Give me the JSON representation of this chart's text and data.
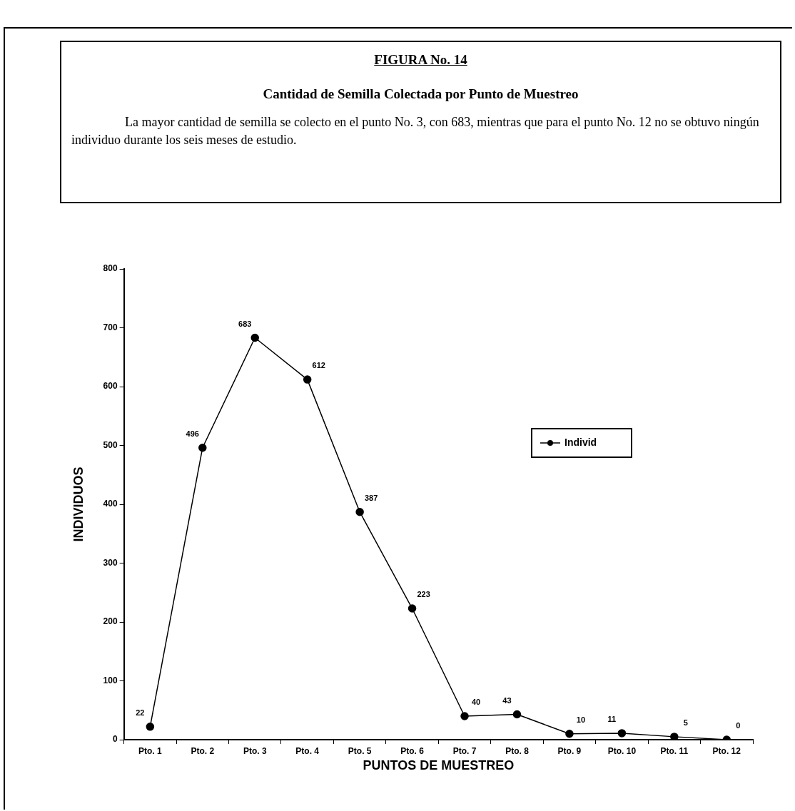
{
  "chart_data": {
    "type": "line",
    "title": "FIGURA No. 14",
    "subtitle": "Cantidad de Semilla Colectada por Punto de Muestreo",
    "annotations": [
      "La  mayor  cantidad de semilla se colecto en el punto No. 3, con 683, mientras que para el punto No. 12 no se obtuvo ningún individuo durante los seis meses de estudio."
    ],
    "xlabel": "PUNTOS DE MUESTREO",
    "ylabel": "INDIVIDUOS",
    "categories": [
      "Pto. 1",
      "Pto. 2",
      "Pto. 3",
      "Pto. 4",
      "Pto. 5",
      "Pto. 6",
      "Pto. 7",
      "Pto. 8",
      "Pto. 9",
      "Pto. 10",
      "Pto. 11",
      "Pto. 12"
    ],
    "series": [
      {
        "name": "Individ",
        "color": "#000000",
        "values": [
          22,
          496,
          683,
          612,
          387,
          223,
          40,
          43,
          10,
          11,
          5,
          0
        ]
      }
    ],
    "ylim": [
      0,
      800
    ],
    "yticks": [
      0,
      100,
      200,
      300,
      400,
      500,
      600,
      700,
      800
    ],
    "data_labels": true,
    "grid": false,
    "legend": "right",
    "marker": "circle",
    "line_style": "solid"
  }
}
